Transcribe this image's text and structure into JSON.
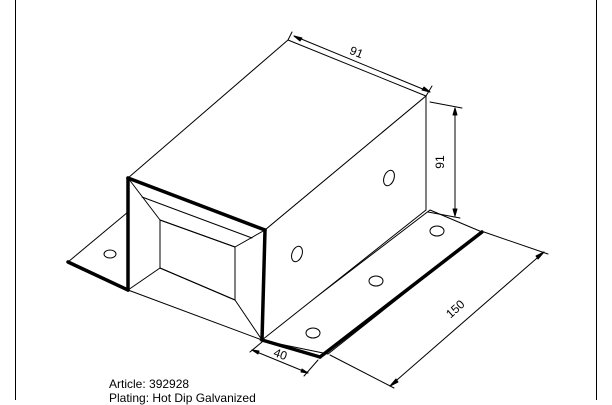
{
  "drawing": {
    "dimensions": {
      "top_width": "91",
      "height": "91",
      "length": "150",
      "flange_width": "40"
    }
  },
  "info": {
    "article_label": "Article:",
    "article_value": "392928",
    "plating_label": "Plating:",
    "plating_value": "Hot Dip Galvanized"
  }
}
